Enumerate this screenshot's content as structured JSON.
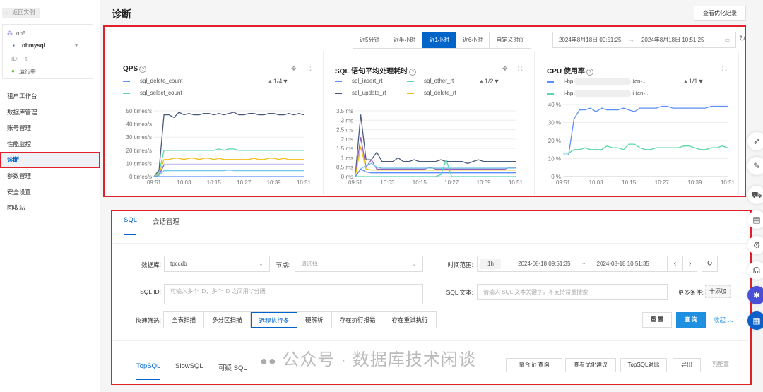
{
  "sidebar": {
    "back_label": "返回实例",
    "instance": {
      "cluster_name": "ob5",
      "tenant_name": "obmysql",
      "id_label": "ID:",
      "id_value": "t",
      "status": "运行中",
      "status_color": "#52c41a"
    },
    "items": [
      {
        "label": "租户工作台"
      },
      {
        "label": "数据库管理"
      },
      {
        "label": "账号管理"
      },
      {
        "label": "性能监控"
      },
      {
        "label": "诊断",
        "active": true
      },
      {
        "label": "参数管理"
      },
      {
        "label": "安全设置"
      },
      {
        "label": "回收站"
      }
    ]
  },
  "header": {
    "title": "诊断",
    "view_records_button": "查看优化记录"
  },
  "time_filter": {
    "options": [
      "近5分钟",
      "近半小时",
      "近1小时",
      "近6小时",
      "自定义时间"
    ],
    "selected": "近1小时",
    "start": "2024年8月18日 09:51:25",
    "arrow": "→",
    "end": "2024年8月18日 10:51:25"
  },
  "accent_color": "#0064c8",
  "chart_data": [
    {
      "type": "line",
      "title": "QPS",
      "legend": [
        {
          "name": "sql_delete_count",
          "color": "#5b8ff9"
        },
        {
          "name": "sql_select_count",
          "color": "#5ad8a6"
        }
      ],
      "legend_page": "1/4",
      "x": [
        "09:51",
        "09:53",
        "09:55",
        "09:57",
        "09:59",
        "10:01",
        "10:03",
        "10:05",
        "10:07",
        "10:09",
        "10:11",
        "10:13",
        "10:15",
        "10:17",
        "10:19",
        "10:21",
        "10:23",
        "10:25",
        "10:27",
        "10:29",
        "10:31",
        "10:33",
        "10:35",
        "10:37",
        "10:39",
        "10:41",
        "10:43",
        "10:45",
        "10:47",
        "10:49",
        "10:51"
      ],
      "xticks": [
        "09:51",
        "10:03",
        "10:15",
        "10:27",
        "10:39",
        "10:51"
      ],
      "yticks": [
        "0 times/s",
        "10 times/s",
        "20 times/s",
        "30 times/s",
        "40 times/s",
        "50 times/s"
      ],
      "ylim": [
        0,
        50
      ],
      "grid": true,
      "series": [
        {
          "color": "#4a5a7e",
          "values": [
            0,
            5,
            47,
            47,
            45,
            49,
            47,
            48,
            47,
            47,
            48,
            48,
            47,
            48,
            47,
            48,
            49,
            47,
            47,
            48,
            48,
            47,
            47,
            48,
            48,
            47,
            47,
            48,
            47,
            48,
            47
          ]
        },
        {
          "color": "#5ad8a6",
          "values": [
            0,
            3,
            20,
            20,
            20,
            20,
            20,
            20,
            20,
            20,
            20,
            20,
            20,
            21,
            20,
            21,
            21,
            20,
            20,
            20,
            20,
            20,
            20,
            20,
            20,
            20,
            20,
            20,
            20,
            20,
            20
          ]
        },
        {
          "color": "#f6bd16",
          "values": [
            0,
            2,
            13,
            13,
            14,
            14,
            13,
            14,
            14,
            13,
            14,
            14,
            13,
            14,
            13,
            13,
            13,
            13,
            13,
            13,
            14,
            13,
            13,
            14,
            14,
            13,
            14,
            13,
            13,
            13,
            13
          ]
        },
        {
          "color": "#6c5ce7",
          "values": [
            0,
            1,
            9,
            9,
            9,
            9,
            9,
            9,
            9,
            9,
            9,
            9,
            9,
            9,
            9,
            9,
            9,
            9,
            9,
            9,
            9,
            9,
            9,
            9,
            9,
            9,
            9,
            9,
            9,
            9,
            9
          ]
        },
        {
          "color": "#6dc8ec",
          "values": [
            0,
            1,
            4.5,
            4.5,
            4.5,
            4.5,
            4.5,
            4.5,
            4.5,
            4.5,
            4.5,
            4.5,
            4.5,
            4.5,
            4.5,
            5,
            4.5,
            4.5,
            4.5,
            4.5,
            4.5,
            4.5,
            4.5,
            4.5,
            4.5,
            4.5,
            4.5,
            4.5,
            4.5,
            4.5,
            4.5
          ]
        },
        {
          "color": "#5b8ff9",
          "values": [
            0,
            0,
            0,
            0,
            0,
            0,
            0,
            0,
            0,
            0,
            0,
            0,
            0,
            0,
            0,
            0,
            0,
            0,
            0,
            0,
            0,
            0,
            0,
            0,
            0,
            0,
            0,
            0,
            0,
            0,
            0
          ]
        }
      ]
    },
    {
      "type": "line",
      "title": "SQL 语句平均处理耗时",
      "legend": [
        {
          "name": "sql_insert_rt",
          "color": "#5b8ff9"
        },
        {
          "name": "sql_other_rt",
          "color": "#5ad8a6"
        },
        {
          "name": "sql_update_rt",
          "color": "#4a5a7e"
        },
        {
          "name": "sql_delete_rt",
          "color": "#f6bd16"
        }
      ],
      "legend_page": "1/2",
      "x": [
        "09:51",
        "09:53",
        "09:55",
        "09:57",
        "09:59",
        "10:01",
        "10:03",
        "10:05",
        "10:07",
        "10:09",
        "10:11",
        "10:13",
        "10:15",
        "10:17",
        "10:19",
        "10:21",
        "10:23",
        "10:25",
        "10:27",
        "10:29",
        "10:31",
        "10:33",
        "10:35",
        "10:37",
        "10:39",
        "10:41",
        "10:43",
        "10:45",
        "10:47",
        "10:49",
        "10:51"
      ],
      "xticks": [
        "09:51",
        "10:03",
        "10:15",
        "10:27",
        "10:39",
        "10:51"
      ],
      "yticks": [
        "0 ms",
        "0.5 ms",
        "1 ms",
        "1.5 ms",
        "2 ms",
        "2.5 ms",
        "3 ms",
        "3.5 ms"
      ],
      "ylim": [
        0,
        3.5
      ],
      "grid": true,
      "series": [
        {
          "color": "#4a5a7e",
          "values": [
            0.1,
            3.3,
            0.9,
            0.9,
            1.3,
            0.8,
            0.8,
            0.8,
            1.0,
            0.8,
            0.8,
            0.9,
            0.8,
            0.8,
            0.8,
            0.8,
            0.9,
            0.8,
            0.8,
            0.8,
            0.8,
            0.7,
            0.8,
            0.9,
            0.8,
            0.8,
            0.8,
            0.8,
            0.8,
            0.8,
            0.8
          ]
        },
        {
          "color": "#9661bc",
          "values": [
            0.1,
            2.1,
            0.5,
            0.9,
            0.4,
            0.4,
            0.4,
            0.4,
            0.4,
            0.4,
            0.4,
            0.4,
            0.4,
            0.4,
            0.5,
            0.4,
            0.4,
            0.4,
            0.4,
            0.4,
            0.4,
            0.4,
            0.4,
            0.4,
            0.4,
            0.4,
            0.4,
            0.4,
            0.4,
            0.5,
            0.5
          ]
        },
        {
          "color": "#f6bd16",
          "values": [
            0,
            1.6,
            0.4,
            0.35,
            0.35,
            0.35,
            0.35,
            0.35,
            0.35,
            0.35,
            0.35,
            0.35,
            0.35,
            0.35,
            0.35,
            0.35,
            0.35,
            0.35,
            0.35,
            0.35,
            0.35,
            0.35,
            0.35,
            0.35,
            0.35,
            0.35,
            0.35,
            0.35,
            0.35,
            0.35,
            0.35
          ]
        },
        {
          "color": "#6dc8ec",
          "values": [
            0,
            0.4,
            0.6,
            0.7,
            0.5,
            0.45,
            0.45,
            0.45,
            0.45,
            0.45,
            0.45,
            0.45,
            0.45,
            0.45,
            0.45,
            0.45,
            0.45,
            0.45,
            0.45,
            0.45,
            0.45,
            0.45,
            0.45,
            0.45,
            0.45,
            0.45,
            0.45,
            0.45,
            0.45,
            0.45,
            0.45
          ]
        },
        {
          "color": "#5b8ff9",
          "values": [
            0,
            0.4,
            0.25,
            0.2,
            0.2,
            0.2,
            0.2,
            0.2,
            0.2,
            0.2,
            0.2,
            0.2,
            0.2,
            0.2,
            0.2,
            0.2,
            0.2,
            0.2,
            0.2,
            0.2,
            0.2,
            0.2,
            0.2,
            0.2,
            0.2,
            0.2,
            0.2,
            0.2,
            0.2,
            0.2,
            0.2
          ]
        },
        {
          "color": "#5ad8a6",
          "values": [
            0,
            0,
            0,
            0,
            0,
            0,
            0,
            0,
            0,
            0,
            0,
            0,
            0,
            0,
            0,
            0,
            0.1,
            0.9,
            0,
            0,
            0,
            0,
            0,
            0,
            0,
            0,
            0,
            0,
            0,
            0,
            0
          ]
        }
      ]
    },
    {
      "type": "line",
      "title": "CPU 使用率",
      "legend": [
        {
          "name": "i-bp",
          "suffix": "(cn-...",
          "color": "#5b8ff9"
        },
        {
          "name": "i-bp",
          "suffix": "i (cn-...",
          "color": "#5ad8a6"
        }
      ],
      "legend_page": "1/1",
      "x": [
        "09:51",
        "09:53",
        "09:55",
        "09:57",
        "09:59",
        "10:01",
        "10:03",
        "10:05",
        "10:07",
        "10:09",
        "10:11",
        "10:13",
        "10:15",
        "10:17",
        "10:19",
        "10:21",
        "10:23",
        "10:25",
        "10:27",
        "10:29",
        "10:31",
        "10:33",
        "10:35",
        "10:37",
        "10:39",
        "10:41",
        "10:43",
        "10:45",
        "10:47",
        "10:49",
        "10:51"
      ],
      "xticks": [
        "09:51",
        "10:03",
        "10:15",
        "10:27",
        "10:39",
        "10:51"
      ],
      "yticks": [
        "0 %",
        "10 %",
        "20 %",
        "30 %",
        "40 %"
      ],
      "ylim": [
        0,
        40
      ],
      "grid": true,
      "series": [
        {
          "color": "#5b8ff9",
          "values": [
            12,
            12,
            32,
            37,
            37,
            38,
            36,
            38,
            37,
            37,
            37,
            38,
            37,
            36,
            38,
            38,
            38,
            38,
            39,
            39,
            38,
            38,
            38,
            38,
            38,
            38,
            38,
            39,
            39,
            39,
            39
          ]
        },
        {
          "color": "#5ad8a6",
          "values": [
            13,
            13,
            15,
            15,
            16,
            15,
            15,
            15,
            17,
            16,
            16,
            15,
            18,
            18,
            16,
            15,
            15,
            16,
            16,
            16,
            16,
            16,
            17,
            17,
            16,
            15,
            15,
            16,
            16,
            17,
            16
          ]
        }
      ]
    }
  ],
  "sql_panel": {
    "tabs": [
      "SQL",
      "会话管理"
    ],
    "active_tab": "SQL",
    "database_label": "数据库:",
    "database_value": "tpccdb",
    "node_label": "节点:",
    "node_placeholder": "请选择",
    "time_label": "时间范围:",
    "time_preset": "1h",
    "time_start": "2024-08-18 09:51:35",
    "time_sep": "~",
    "time_end": "2024-08-18 10:51:35",
    "sqlid_label": "SQL ID:",
    "sqlid_placeholder": "可输入多个 ID，多个 ID 之间用\",\"分隔",
    "sqltext_label": "SQL 文本:",
    "sqltext_placeholder": "请输入 SQL 文本关键字，不支持常量搜索",
    "more_label": "更多条件:",
    "add_button": "十添加",
    "quick_label": "快速筛选:",
    "quick_filters": [
      "全表扫描",
      "多分区扫描",
      "远程执行多",
      "硬解析",
      "存在执行报错",
      "存在重试执行"
    ],
    "quick_selected": "远程执行多",
    "reset_button": "重 置",
    "query_button": "查 询",
    "collapse_link": "收起",
    "result_tabs": [
      "TopSQL",
      "SlowSQL",
      "可疑 SQL"
    ],
    "result_active": "TopSQL",
    "result_actions": [
      "聚合 in 查询",
      "查看优化建议",
      "TopSQL对比",
      "导出",
      "列配置"
    ]
  },
  "watermark": "公众号 · 数据库技术闲谈"
}
